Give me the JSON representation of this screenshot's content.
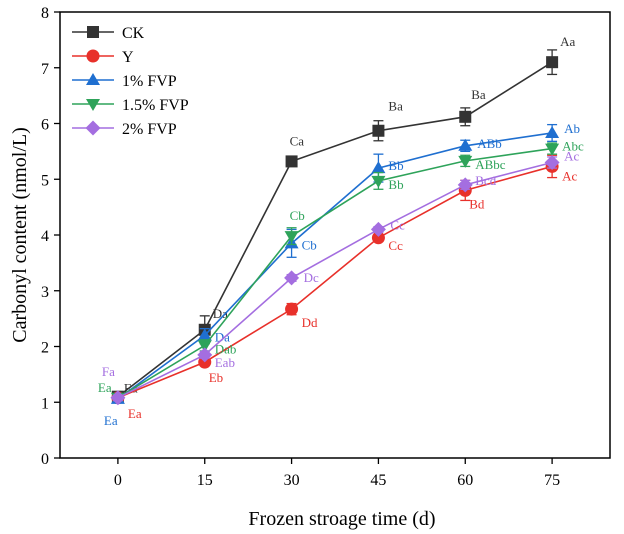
{
  "chart_data": {
    "type": "line",
    "xlabel": "Frozen stroage time (d)",
    "ylabel": "Carbonyl content (nmol/L)",
    "x": [
      0,
      15,
      30,
      45,
      60,
      75
    ],
    "x_ticks": [
      "0",
      "15",
      "30",
      "45",
      "60",
      "75"
    ],
    "xlim": [
      -10,
      85
    ],
    "y_ticks": [
      "0",
      "1",
      "2",
      "3",
      "4",
      "5",
      "6",
      "7",
      "8"
    ],
    "ylim": [
      0,
      8
    ],
    "legend_position": "top-left",
    "series": [
      {
        "name": "CK",
        "color": "#333333",
        "marker": "square",
        "values": [
          1.1,
          2.3,
          5.32,
          5.87,
          6.12,
          7.1
        ],
        "errors": [
          0.05,
          0.25,
          0.05,
          0.18,
          0.16,
          0.22
        ],
        "labels": [
          "Ea",
          "Da",
          "Ca",
          "Ba",
          "Ba",
          "Aa"
        ]
      },
      {
        "name": "Y",
        "color": "#e8302a",
        "marker": "circle",
        "values": [
          1.08,
          1.72,
          2.67,
          3.95,
          4.8,
          5.23
        ],
        "errors": [
          0.05,
          0.06,
          0.1,
          0.06,
          0.18,
          0.2
        ],
        "labels": [
          "Ea",
          "Eb",
          "Dd",
          "Cc",
          "Bd",
          "Ac"
        ]
      },
      {
        "name": "1% FVP",
        "color": "#1f6fd0",
        "marker": "triangle-up",
        "values": [
          1.06,
          2.2,
          3.85,
          5.2,
          5.6,
          5.83
        ],
        "errors": [
          0.05,
          0.12,
          0.25,
          0.25,
          0.1,
          0.15
        ],
        "labels": [
          "Ea",
          "Da",
          "Cb",
          "Bb",
          "ABb",
          "Ab"
        ]
      },
      {
        "name": "1.5% FVP",
        "color": "#2ea35a",
        "marker": "triangle-down",
        "values": [
          1.08,
          2.02,
          3.98,
          4.97,
          5.33,
          5.55
        ],
        "errors": [
          0.05,
          0.1,
          0.15,
          0.15,
          0.1,
          0.1
        ],
        "labels": [
          "Ea",
          "Dab",
          "Cb",
          "Bb",
          "ABbc",
          "Abc"
        ]
      },
      {
        "name": "2% FVP",
        "color": "#a46ee0",
        "marker": "diamond",
        "values": [
          1.08,
          1.85,
          3.23,
          4.1,
          4.9,
          5.3
        ],
        "errors": [
          0.05,
          0.06,
          0.06,
          0.05,
          0.08,
          0.1
        ],
        "labels": [
          "Fa",
          "Eab",
          "Dc",
          "Cc",
          "Bcd",
          "Ac"
        ]
      }
    ]
  }
}
